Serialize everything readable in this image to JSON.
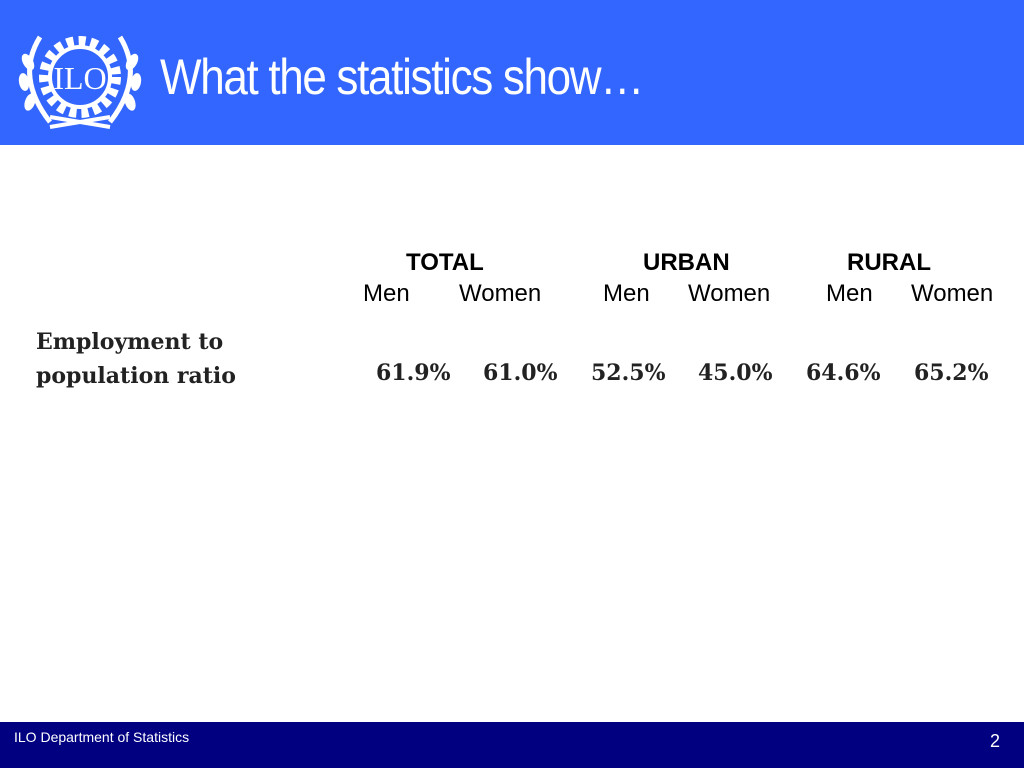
{
  "header": {
    "title": "What the statistics show…",
    "logo_text": "ILO",
    "color": "#3366ff"
  },
  "table": {
    "groups": [
      "TOTAL",
      "URBAN",
      "RURAL"
    ],
    "subheaders": [
      "Men",
      "Women",
      "Men",
      "Women",
      "Men",
      "Women"
    ],
    "row": {
      "label_line1": "Employment to",
      "label_line2": "population ratio",
      "values": [
        "61.9%",
        "61.0%",
        "52.5%",
        "45.0%",
        "64.6%",
        "65.2%"
      ]
    }
  },
  "footer": {
    "text": "ILO Department of Statistics",
    "page_number": "2",
    "color": "#000080"
  }
}
